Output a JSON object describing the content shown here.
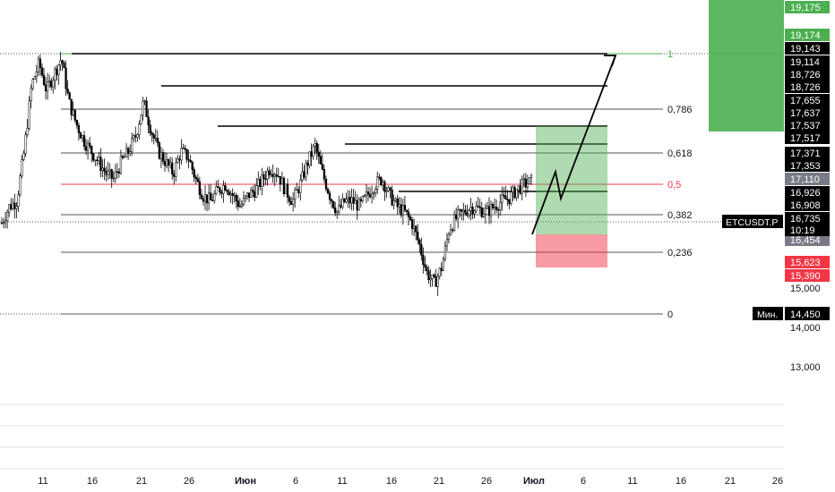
{
  "chart_data": {
    "type": "candlestick",
    "symbol": "ETCUSDT.P",
    "currency": "USDT",
    "countdown": "10:19",
    "min_label": "Мин.",
    "min_value": "14,450",
    "y_axis_ticks": [
      "19,175",
      "19,174",
      "19,143",
      "19,114",
      "18,726",
      "18,726",
      "17,655",
      "17,637",
      "17,537",
      "17,517",
      "17,371",
      "17,353",
      "17,110",
      "16,926",
      "16,908",
      "16,735",
      "16,454",
      "15,623",
      "15,390",
      "15,000",
      "14,000",
      "13,000"
    ],
    "x_axis_ticks": [
      "11",
      "16",
      "21",
      "26",
      "Июн",
      "6",
      "11",
      "16",
      "21",
      "26",
      "Июл",
      "6",
      "11",
      "16",
      "21",
      "26"
    ],
    "fib_levels": [
      {
        "label": "1",
        "value": 19.174,
        "color": "#4caf50"
      },
      {
        "label": "0,786",
        "value": 18.2,
        "color": "#555555"
      },
      {
        "label": "0,618",
        "value": 17.37,
        "color": "#555555"
      },
      {
        "label": "0,5",
        "value": 17.11,
        "color": "#f23645"
      },
      {
        "label": "0,382",
        "value": 16.735,
        "color": "#555555"
      },
      {
        "label": "0,236",
        "value": 16.2,
        "color": "#555555"
      },
      {
        "label": "0",
        "value": 14.45,
        "color": "#555555"
      }
    ],
    "resistance_levels": [
      19.174,
      18.726,
      17.62,
      17.45,
      16.926
    ],
    "price_series": [
      16.1,
      16.4,
      16.5,
      17.4,
      18.6,
      19.0,
      18.5,
      18.8,
      19.1,
      18.3,
      17.9,
      17.6,
      17.4,
      17.2,
      17.0,
      16.9,
      17.2,
      17.4,
      17.7,
      18.3,
      17.8,
      17.4,
      17.2,
      17.0,
      17.4,
      17.3,
      16.9,
      16.6,
      16.5,
      16.7,
      16.8,
      16.6,
      16.4,
      16.6,
      16.7,
      16.9,
      17.1,
      17.0,
      16.7,
      16.5,
      16.8,
      17.2,
      17.5,
      17.0,
      16.6,
      16.3,
      16.5,
      16.5,
      16.4,
      16.6,
      16.8,
      16.9,
      16.6,
      16.4,
      16.3,
      16.1,
      15.7,
      15.2,
      15.0,
      15.3,
      16.0,
      16.2,
      16.3,
      16.4,
      16.35,
      16.3,
      16.4,
      16.5,
      16.55,
      16.7,
      16.8,
      16.85
    ]
  }
}
